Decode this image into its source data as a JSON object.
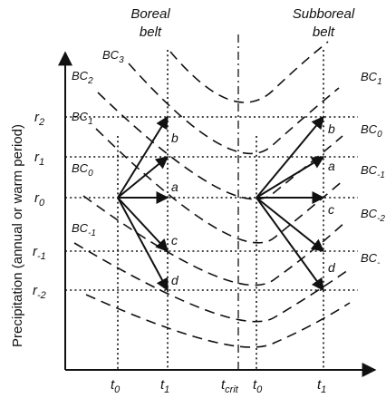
{
  "header": {
    "boreal_line1": "Boreal",
    "boreal_line2": "belt",
    "subboreal_line1": "Subboreal",
    "subboreal_line2": "belt"
  },
  "axis": {
    "ylabel": "Precipitation (annual or warm period)",
    "y_ticks": [
      {
        "base": "r",
        "sub": "2"
      },
      {
        "base": "r",
        "sub": "1"
      },
      {
        "base": "r",
        "sub": "0"
      },
      {
        "base": "r",
        "sub": "-1"
      },
      {
        "base": "r",
        "sub": "-2"
      }
    ],
    "x_ticks": [
      {
        "base": "t",
        "sub": "0"
      },
      {
        "base": "t",
        "sub": "1"
      },
      {
        "base": "t",
        "sub": "crit"
      },
      {
        "base": "t",
        "sub": "0"
      },
      {
        "base": "t",
        "sub": "1"
      }
    ]
  },
  "curves_left": [
    {
      "base": "BC",
      "sub": "3"
    },
    {
      "base": "BC",
      "sub": "2"
    },
    {
      "base": "BC",
      "sub": "1"
    },
    {
      "base": "BC",
      "sub": "0"
    },
    {
      "base": "BC",
      "sub": "-1"
    }
  ],
  "curves_right": [
    {
      "base": "BC",
      "sub": "1"
    },
    {
      "base": "BC",
      "sub": "0"
    },
    {
      "base": "BC",
      "sub": "-1"
    },
    {
      "base": "BC",
      "sub": "-2"
    },
    {
      "base": "BC",
      "sub": "-"
    }
  ],
  "points_left": [
    "b",
    "a",
    "c",
    "d"
  ],
  "points_right": [
    "b",
    "a",
    "c",
    "d"
  ]
}
